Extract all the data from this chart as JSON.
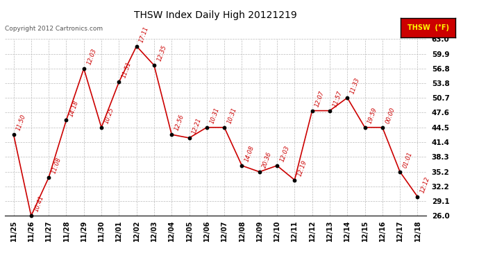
{
  "title": "THSW Index Daily High 20121219",
  "copyright": "Copyright 2012 Cartronics.com",
  "legend_label": "THSW  (°F)",
  "x_labels": [
    "11/25",
    "11/26",
    "11/27",
    "11/28",
    "11/29",
    "11/30",
    "12/01",
    "12/02",
    "12/03",
    "12/04",
    "12/05",
    "12/06",
    "12/07",
    "12/08",
    "12/09",
    "12/10",
    "12/11",
    "12/12",
    "12/13",
    "12/14",
    "12/15",
    "12/16",
    "12/17",
    "12/18"
  ],
  "y_values": [
    43.0,
    26.0,
    34.0,
    46.0,
    56.8,
    44.5,
    54.0,
    61.5,
    57.5,
    43.0,
    42.3,
    44.5,
    44.5,
    36.5,
    35.2,
    36.5,
    33.5,
    48.0,
    48.0,
    50.7,
    44.5,
    44.5,
    35.2,
    30.0
  ],
  "time_labels": [
    "11:50",
    "10:41",
    "11:08",
    "14:18",
    "12:03",
    "10:25",
    "11:51",
    "17:11",
    "12:35",
    "12:56",
    "12:21",
    "10:31",
    "10:31",
    "14:08",
    "20:36",
    "12:03",
    "12:19",
    "12:07",
    "11:57",
    "11:33",
    "19:59",
    "00:00",
    "01:01",
    "12:12"
  ],
  "y_min": 26.0,
  "y_max": 63.0,
  "y_ticks": [
    26.0,
    29.1,
    32.2,
    35.2,
    38.3,
    41.4,
    44.5,
    47.6,
    50.7,
    53.8,
    56.8,
    59.9,
    63.0
  ],
  "y_tick_labels": [
    "26.0",
    "29.1",
    "32.2",
    "35.2",
    "38.3",
    "41.4",
    "44.5",
    "47.6",
    "50.7",
    "53.8",
    "56.8",
    "59.9",
    "63.0"
  ],
  "line_color": "#cc0000",
  "marker_color": "#000000",
  "bg_color": "#ffffff",
  "grid_color": "#bbbbbb",
  "title_color": "#000000",
  "label_color": "#cc0000",
  "legend_bg": "#cc0000",
  "legend_text_color": "#ffff00",
  "copyright_color": "#555555",
  "figwidth": 6.9,
  "figheight": 3.75,
  "dpi": 100
}
